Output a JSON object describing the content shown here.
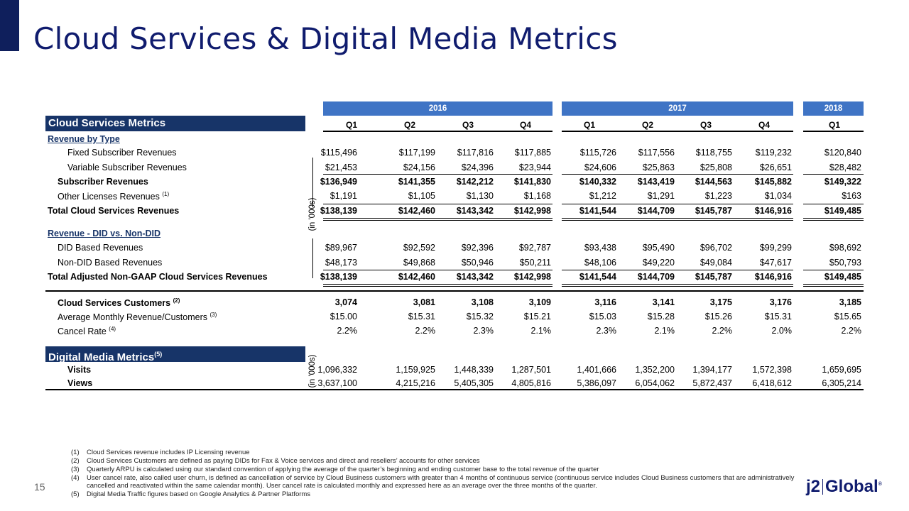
{
  "title": "Cloud Services & Digital Media Metrics",
  "years": [
    "2016",
    "2017",
    "2018"
  ],
  "quarters": [
    "Q1",
    "Q2",
    "Q3",
    "Q4",
    "Q1",
    "Q2",
    "Q3",
    "Q4",
    "Q1"
  ],
  "cloud": {
    "header": "Cloud Services Metrics",
    "unit_label": "(in '000s)",
    "revenue_by_type": "Revenue by Type",
    "rows": {
      "fixed": {
        "label": "Fixed Subscriber Revenues",
        "values": [
          "$115,496",
          "$117,199",
          "$117,816",
          "$117,885",
          "$115,726",
          "$117,556",
          "$118,755",
          "$119,232",
          "$120,840"
        ]
      },
      "variable": {
        "label": "Variable Subscriber Revenues",
        "values": [
          "$21,453",
          "$24,156",
          "$24,396",
          "$23,944",
          "$24,606",
          "$25,863",
          "$25,808",
          "$26,651",
          "$28,482"
        ]
      },
      "subscriber": {
        "label": "Subscriber Revenues",
        "values": [
          "$136,949",
          "$141,355",
          "$142,212",
          "$141,830",
          "$140,332",
          "$143,419",
          "$144,563",
          "$145,882",
          "$149,322"
        ]
      },
      "other": {
        "label": "Other Licenses Revenues",
        "sup": "(1)",
        "values": [
          "$1,191",
          "$1,105",
          "$1,130",
          "$1,168",
          "$1,212",
          "$1,291",
          "$1,223",
          "$1,034",
          "$163"
        ]
      },
      "total": {
        "label": "Total Cloud Services Revenues",
        "values": [
          "$138,139",
          "$142,460",
          "$143,342",
          "$142,998",
          "$141,544",
          "$144,709",
          "$145,787",
          "$146,916",
          "$149,485"
        ]
      }
    },
    "revenue_did": "Revenue - DID vs. Non-DID",
    "did_rows": {
      "did": {
        "label": "DID Based Revenues",
        "values": [
          "$89,967",
          "$92,592",
          "$92,396",
          "$92,787",
          "$93,438",
          "$95,490",
          "$96,702",
          "$99,299",
          "$98,692"
        ]
      },
      "nondid": {
        "label": "Non-DID Based Revenues",
        "values": [
          "$48,173",
          "$49,868",
          "$50,946",
          "$50,211",
          "$48,106",
          "$49,220",
          "$49,084",
          "$47,617",
          "$50,793"
        ]
      },
      "adjusted": {
        "label": "Total Adjusted Non-GAAP Cloud Services Revenues",
        "values": [
          "$138,139",
          "$142,460",
          "$143,342",
          "$142,998",
          "$141,544",
          "$144,709",
          "$145,787",
          "$146,916",
          "$149,485"
        ]
      }
    },
    "customer_rows": {
      "customers": {
        "label": "Cloud Services Customers",
        "sup": "(2)",
        "values": [
          "3,074",
          "3,081",
          "3,108",
          "3,109",
          "3,116",
          "3,141",
          "3,175",
          "3,176",
          "3,185"
        ]
      },
      "arpu": {
        "label": "Average Monthly Revenue/Customers",
        "sup": "(3)",
        "values": [
          "$15.00",
          "$15.31",
          "$15.32",
          "$15.21",
          "$15.03",
          "$15.28",
          "$15.26",
          "$15.31",
          "$15.65"
        ]
      },
      "cancel": {
        "label": "Cancel Rate",
        "sup": "(4)",
        "values": [
          "2.2%",
          "2.2%",
          "2.3%",
          "2.1%",
          "2.3%",
          "2.1%",
          "2.2%",
          "2.0%",
          "2.2%"
        ]
      }
    }
  },
  "digital": {
    "header": "Digital Media Metrics",
    "sup": "(5)",
    "unit_label": "(in '000s)",
    "rows": {
      "visits": {
        "label": "Visits",
        "values": [
          "1,096,332",
          "1,159,925",
          "1,448,339",
          "1,287,501",
          "1,401,666",
          "1,352,200",
          "1,394,177",
          "1,572,398",
          "1,659,695"
        ]
      },
      "views": {
        "label": "Views",
        "values": [
          "3,637,100",
          "4,215,216",
          "5,405,305",
          "4,805,816",
          "5,386,097",
          "6,054,062",
          "5,872,437",
          "6,418,612",
          "6,305,214"
        ]
      }
    }
  },
  "footnotes": [
    {
      "num": "(1)",
      "text": "Cloud Services revenue includes IP Licensing revenue"
    },
    {
      "num": "(2)",
      "text": "Cloud Services Customers are defined as paying DIDs for Fax & Voice services and direct and resellers’ accounts for other services"
    },
    {
      "num": "(3)",
      "text": "Quarterly ARPU is calculated using our standard convention of applying the average of the quarter’s beginning and ending customer base to the total revenue of the quarter"
    },
    {
      "num": "(4)",
      "text": "User cancel rate, also called user churn, is defined as cancellation of service by Cloud Business customers with greater than 4 months of continuous service (continuous service includes Cloud Business customers that are administratively cancelled and reactivated within the same calendar month). User cancel rate is calculated monthly and expressed here as an average over the three months of the quarter."
    },
    {
      "num": "(5)",
      "text": "Digital Media Traffic figures based on Google Analytics & Partner Platforms"
    }
  ],
  "page_number": "15",
  "logo": {
    "left": "j2",
    "right": "Global",
    "mark": "®"
  },
  "colors": {
    "title": "#101c6e",
    "section_bar": "#173468",
    "year_band": "#3f74c5"
  }
}
